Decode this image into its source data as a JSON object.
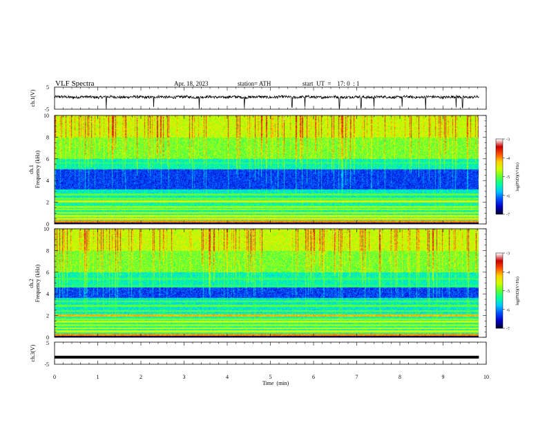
{
  "header": {
    "title": "VLF  Spectra",
    "date": "Apr. 18, 2023",
    "station": "station= ATH",
    "start_ut": "start  UT  =    17: 0  : 1"
  },
  "chart_data": [
    {
      "type": "line",
      "name": "ch1-waveform",
      "ylabel": "ch.1(V)",
      "ylim": [
        -5,
        5
      ],
      "yticks": [
        "5",
        "-5"
      ],
      "x_range_min": [
        0,
        9.83
      ],
      "baseline_v": 0.5,
      "noise_amplitude_v": 0.6,
      "spike_times_min": [
        1.2,
        2.3,
        3.35,
        4.4,
        5.5,
        5.8,
        6.6,
        7.1,
        7.4,
        8.05,
        8.6,
        9.3,
        9.45
      ]
    },
    {
      "type": "heatmap",
      "name": "ch1-spectrogram",
      "ylabel": "ch.1\nFrequency  (kHz)",
      "ylabel_lines": [
        "ch.1",
        "Frequency  (kHz)"
      ],
      "ylim": [
        0,
        10
      ],
      "yticks": [
        "0",
        "2",
        "4",
        "6",
        "8",
        "10"
      ],
      "x_range_min": [
        0,
        9.83
      ],
      "dark_band_khz": [
        3.2,
        5.0
      ],
      "colorbar": {
        "label": "log(PSD)(V²/Hz)",
        "range": [
          -7,
          -3
        ],
        "ticks": [
          "-3",
          "-4",
          "-5",
          "-6",
          "-7"
        ]
      }
    },
    {
      "type": "heatmap",
      "name": "ch2-spectrogram",
      "ylabel": "ch.2\nFrequency  (kHz)",
      "ylabel_lines": [
        "ch.2",
        "Frequency  (kHz)"
      ],
      "ylim": [
        0,
        10
      ],
      "yticks": [
        "0",
        "2",
        "4",
        "6",
        "8",
        "10"
      ],
      "x_range_min": [
        0,
        9.83
      ],
      "dark_band_khz": [
        3.6,
        4.6
      ],
      "colorbar": {
        "label": "log(PSD)(V²/Hz)",
        "range": [
          -7,
          -3
        ],
        "ticks": [
          "-3",
          "-4",
          "-5",
          "-6",
          "-7"
        ]
      }
    },
    {
      "type": "line",
      "name": "ch3-waveform",
      "ylabel": "ch.3(V)",
      "ylim": [
        -5,
        5
      ],
      "yticks": [
        "5",
        "-5"
      ],
      "x_range_min": [
        0,
        9.83
      ],
      "baseline_v": -1.8
    }
  ],
  "x_axis": {
    "label": "Time  (min)",
    "range": [
      0,
      10
    ],
    "ticks": [
      "0",
      "1",
      "2",
      "3",
      "4",
      "5",
      "6",
      "7",
      "8",
      "9",
      "10"
    ]
  },
  "colors": {
    "background": "#ffffff",
    "axis": "#000000",
    "colormap": [
      "#000033",
      "#0000c8",
      "#0050ff",
      "#00c8ff",
      "#00ffa0",
      "#60ff30",
      "#d0ff00",
      "#ffd000",
      "#ff5000",
      "#c80000",
      "#ffffff"
    ]
  }
}
